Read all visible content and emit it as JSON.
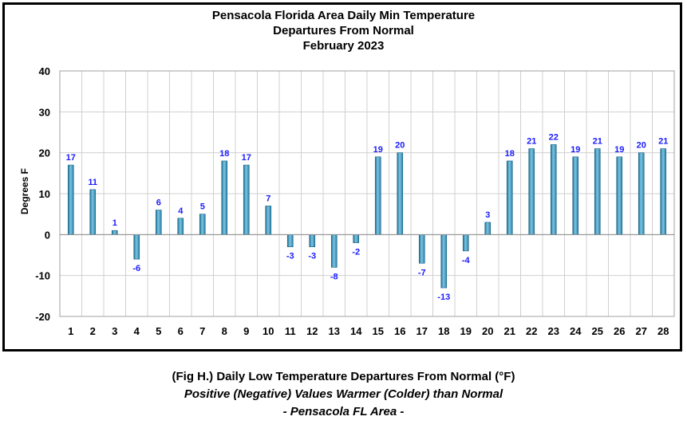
{
  "chart_data": {
    "type": "bar",
    "title": [
      "Pensacola Florida Area Daily Min Temperature",
      "Departures From Normal",
      "February 2023"
    ],
    "xlabel": "",
    "ylabel": "Degrees F",
    "ylim": [
      -20,
      40
    ],
    "yticks": [
      -20,
      -10,
      0,
      10,
      20,
      30,
      40
    ],
    "grid": true,
    "categories": [
      "1",
      "2",
      "3",
      "4",
      "5",
      "6",
      "7",
      "8",
      "9",
      "10",
      "11",
      "12",
      "13",
      "14",
      "15",
      "16",
      "17",
      "18",
      "19",
      "20",
      "21",
      "22",
      "23",
      "24",
      "25",
      "26",
      "27",
      "28"
    ],
    "values": [
      17,
      11,
      1,
      -6,
      6,
      4,
      5,
      18,
      17,
      7,
      -3,
      -3,
      -8,
      -2,
      19,
      20,
      -7,
      -13,
      -4,
      3,
      18,
      21,
      22,
      19,
      21,
      19,
      20,
      21
    ],
    "bar_color": "#4aa3c8",
    "label_color": "#1a1aff"
  },
  "caption": {
    "line1": "(Fig H.) Daily Low Temperature Departures From Normal (°F)",
    "line2": "Positive (Negative) Values Warmer (Colder) than Normal",
    "line3": "- Pensacola FL Area -"
  }
}
